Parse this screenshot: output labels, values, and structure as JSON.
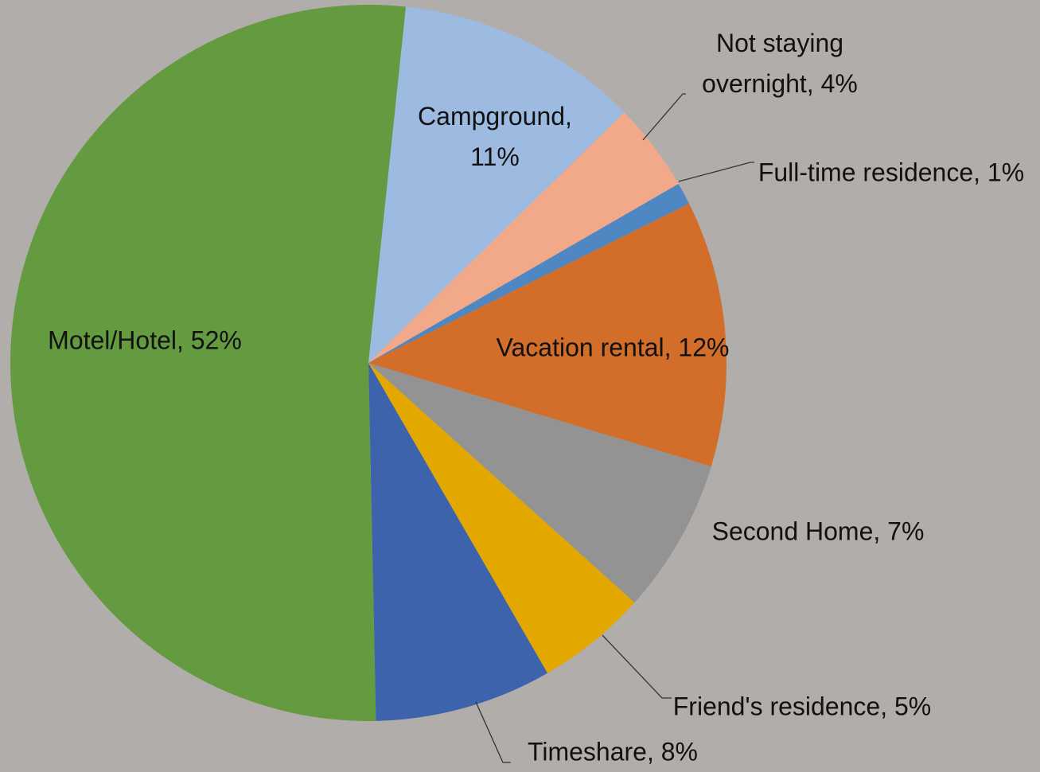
{
  "chart_data": {
    "type": "pie",
    "values": [
      11,
      4,
      1,
      12,
      7,
      5,
      8,
      52
    ],
    "value_labels": [
      "Campground, 11%",
      "Not staying overnight, 4%",
      "Full-time residence, 1%",
      "Vacation rental, 12%",
      "Second Home, 7%",
      "Friend's residence, 5%",
      "Timeshare, 8%",
      "Motel/Hotel, 52%"
    ],
    "colors": [
      "#9dbbe1",
      "#f2a98a",
      "#4f87c2",
      "#d26d2a",
      "#939393",
      "#e2a800",
      "#3c63ab",
      "#649a40"
    ]
  }
}
